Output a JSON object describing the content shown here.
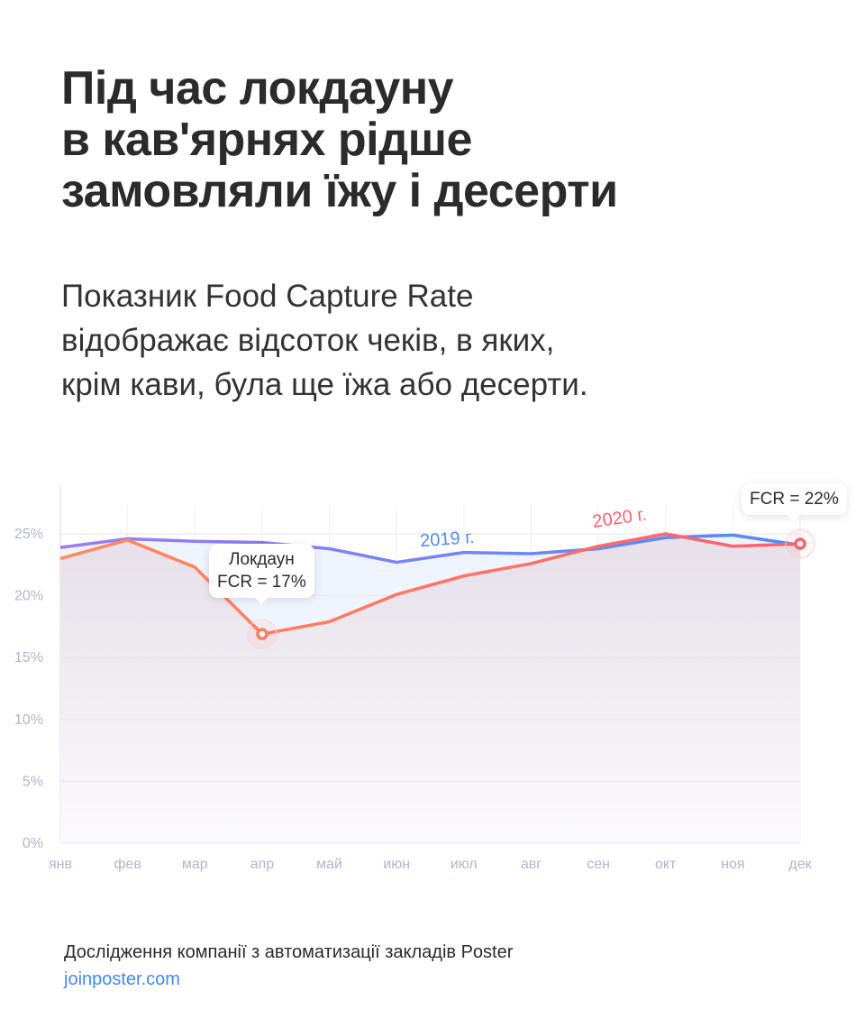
{
  "title_lines": [
    "Під час локдауну",
    "в кав'ярнях рідше",
    "замовляли їжу і десерти"
  ],
  "subtitle_lines": [
    "Показник Food Capture Rate",
    "відображає відсоток чеків, в яких,",
    "крім кави, була ще їжа або десерти."
  ],
  "chart_data": {
    "type": "line",
    "categories": [
      "янв",
      "фев",
      "мар",
      "апр",
      "май",
      "июн",
      "июл",
      "авг",
      "сен",
      "окт",
      "ноя",
      "дек"
    ],
    "y_ticks": [
      "0%",
      "5%",
      "10%",
      "15%",
      "20%",
      "25%"
    ],
    "ylim": [
      0,
      27
    ],
    "grid": true,
    "series": [
      {
        "name": "2019 г.",
        "color_start": "#9b7cf0",
        "color_end": "#4f8cf7",
        "label_color": "#4f8cf7",
        "values": [
          23.9,
          24.6,
          24.4,
          24.3,
          23.8,
          22.7,
          23.5,
          23.4,
          23.8,
          24.7,
          24.9,
          24.1
        ]
      },
      {
        "name": "2020 г.",
        "color_start": "#ff8a5c",
        "color_end": "#ff5f6d",
        "label_color": "#ff5f6d",
        "values": [
          23.0,
          24.5,
          22.3,
          16.9,
          17.9,
          20.1,
          21.6,
          22.6,
          24.0,
          25.0,
          24.0,
          24.2
        ]
      }
    ],
    "annotations": [
      {
        "month": "апр",
        "lines": [
          "Локдаун",
          "FCR = 17%"
        ]
      },
      {
        "month": "дек",
        "lines": [
          "FCR = 22%"
        ]
      }
    ]
  },
  "footer": {
    "source": "Дослідження компанії з автоматизації закладів Poster",
    "link": "joinposter.com"
  }
}
